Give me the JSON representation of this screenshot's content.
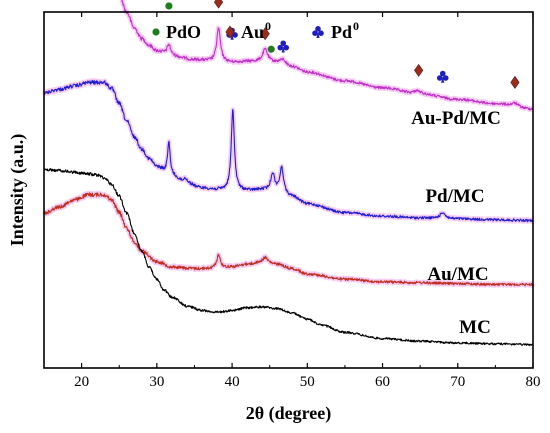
{
  "chart_data": {
    "type": "line",
    "xlabel": "2θ (degree)",
    "ylabel": "Intensity (a.u.)",
    "xlim": [
      15,
      80
    ],
    "xticks": [
      20,
      30,
      40,
      50,
      60,
      70,
      80
    ],
    "xtick_labels": [
      "20",
      "30",
      "40",
      "50",
      "60",
      "70",
      "80"
    ],
    "y_ticks_shown": false,
    "legend": {
      "placement": "top-center",
      "entries": [
        {
          "label": "PdO",
          "marker": "dot",
          "color": "#1e7d1e"
        },
        {
          "label": "Au",
          "superscript": "0",
          "marker": "diamond",
          "color": "#9b2c1c"
        },
        {
          "label": "Pd",
          "superscript": "0",
          "marker": "club",
          "color": "#1f1fc0"
        }
      ]
    },
    "series": [
      {
        "name": "Au-Pd/MC",
        "color": "#c030c8",
        "offset": 3,
        "points": [
          [
            15,
            1.95
          ],
          [
            17,
            1.97
          ],
          [
            19,
            1.99
          ],
          [
            21,
            2.0
          ],
          [
            23,
            1.99
          ],
          [
            24,
            1.93
          ],
          [
            25,
            1.8
          ],
          [
            26,
            1.6
          ],
          [
            27,
            1.42
          ],
          [
            28,
            1.3
          ],
          [
            29,
            1.22
          ],
          [
            30,
            1.16
          ],
          [
            32,
            1.1
          ],
          [
            35,
            1.06
          ],
          [
            38,
            1.04
          ],
          [
            40,
            1.03
          ],
          [
            42,
            1.04
          ],
          [
            44,
            1.04
          ],
          [
            46,
            1.03
          ],
          [
            48,
            0.98
          ],
          [
            50,
            0.92
          ],
          [
            55,
            0.82
          ],
          [
            60,
            0.74
          ],
          [
            65,
            0.67
          ],
          [
            70,
            0.61
          ],
          [
            75,
            0.56
          ],
          [
            80,
            0.5
          ]
        ],
        "peaks": [
          [
            31.6,
            0.13,
            0.3
          ],
          [
            38.2,
            0.38,
            0.3
          ],
          [
            44.4,
            0.14,
            0.4
          ],
          [
            46.8,
            0.05,
            0.4
          ],
          [
            64.6,
            0.04,
            0.5
          ],
          [
            77.6,
            0.04,
            0.5
          ]
        ]
      },
      {
        "name": "Pd/MC",
        "color": "#1f1fd0",
        "offset": 2,
        "points": [
          [
            15,
            1.5
          ],
          [
            17,
            1.54
          ],
          [
            19,
            1.58
          ],
          [
            21,
            1.62
          ],
          [
            23,
            1.62
          ],
          [
            24,
            1.55
          ],
          [
            25,
            1.38
          ],
          [
            26,
            1.18
          ],
          [
            27,
            1.0
          ],
          [
            28,
            0.86
          ],
          [
            29,
            0.75
          ],
          [
            30,
            0.66
          ],
          [
            32,
            0.55
          ],
          [
            34,
            0.47
          ],
          [
            36,
            0.42
          ],
          [
            38,
            0.4
          ],
          [
            40,
            0.39
          ],
          [
            42,
            0.39
          ],
          [
            44,
            0.4
          ],
          [
            46,
            0.38
          ],
          [
            48,
            0.32
          ],
          [
            50,
            0.24
          ],
          [
            55,
            0.14
          ],
          [
            60,
            0.1
          ],
          [
            65,
            0.08
          ],
          [
            70,
            0.07
          ],
          [
            75,
            0.06
          ],
          [
            80,
            0.05
          ]
        ],
        "peaks": [
          [
            31.6,
            0.38,
            0.22
          ],
          [
            33.8,
            0.06,
            0.3
          ],
          [
            40.1,
            0.92,
            0.25
          ],
          [
            45.4,
            0.2,
            0.3
          ],
          [
            46.6,
            0.28,
            0.3
          ],
          [
            68.0,
            0.07,
            0.4
          ]
        ]
      },
      {
        "name": "Au/MC",
        "color": "#c03020",
        "offset": 1,
        "points": [
          [
            15,
            0.85
          ],
          [
            17,
            0.92
          ],
          [
            19,
            1.0
          ],
          [
            21,
            1.06
          ],
          [
            23,
            1.06
          ],
          [
            24,
            1.0
          ],
          [
            25,
            0.86
          ],
          [
            26,
            0.68
          ],
          [
            27,
            0.52
          ],
          [
            28,
            0.42
          ],
          [
            30,
            0.3
          ],
          [
            32,
            0.24
          ],
          [
            35,
            0.22
          ],
          [
            38,
            0.22
          ],
          [
            40,
            0.24
          ],
          [
            42,
            0.27
          ],
          [
            44,
            0.29
          ],
          [
            46,
            0.27
          ],
          [
            48,
            0.22
          ],
          [
            50,
            0.16
          ],
          [
            55,
            0.1
          ],
          [
            60,
            0.07
          ],
          [
            65,
            0.06
          ],
          [
            70,
            0.05
          ],
          [
            75,
            0.04
          ],
          [
            80,
            0.04
          ]
        ],
        "peaks": [
          [
            38.2,
            0.16,
            0.3
          ],
          [
            44.4,
            0.06,
            0.4
          ]
        ]
      },
      {
        "name": "MC",
        "color": "#000000",
        "offset": 0,
        "points": [
          [
            15,
            2.05
          ],
          [
            17,
            2.04
          ],
          [
            19,
            2.02
          ],
          [
            21,
            2.0
          ],
          [
            22,
            1.99
          ],
          [
            23,
            1.96
          ],
          [
            24,
            1.88
          ],
          [
            25,
            1.75
          ],
          [
            26,
            1.55
          ],
          [
            27,
            1.33
          ],
          [
            28,
            1.12
          ],
          [
            29,
            0.94
          ],
          [
            30,
            0.8
          ],
          [
            31,
            0.68
          ],
          [
            32,
            0.6
          ],
          [
            34,
            0.5
          ],
          [
            36,
            0.45
          ],
          [
            38,
            0.43
          ],
          [
            40,
            0.45
          ],
          [
            42,
            0.48
          ],
          [
            44,
            0.49
          ],
          [
            46,
            0.47
          ],
          [
            48,
            0.42
          ],
          [
            50,
            0.35
          ],
          [
            52,
            0.28
          ],
          [
            55,
            0.2
          ],
          [
            60,
            0.13
          ],
          [
            65,
            0.1
          ],
          [
            70,
            0.08
          ],
          [
            75,
            0.07
          ],
          [
            80,
            0.06
          ]
        ],
        "peaks": []
      }
    ],
    "phase_markers": [
      {
        "phase": "PdO",
        "marker": "dot",
        "x": 31.6,
        "near": "Au-Pd/MC",
        "lift": 0.32
      },
      {
        "phase": "Au",
        "marker": "diamond",
        "x": 38.2,
        "near": "Au-Pd/MC",
        "lift": 0.18
      },
      {
        "phase": "Pd",
        "marker": "club",
        "x": 40.0,
        "near": "Au-Pd/MC",
        "lift": 0.2
      },
      {
        "phase": "Au",
        "marker": "diamond",
        "x": 44.4,
        "near": "Au-Pd/MC",
        "lift": 0.06
      },
      {
        "phase": "PdO",
        "marker": "dot",
        "x": 45.2,
        "near": "Au-Pd/MC",
        "lift": 0.0
      },
      {
        "phase": "Pd",
        "marker": "club",
        "x": 46.8,
        "near": "Au-Pd/MC",
        "lift": 0.03
      },
      {
        "phase": "Au",
        "marker": "diamond",
        "x": 64.8,
        "near": "Au-Pd/MC",
        "lift": 0.12
      },
      {
        "phase": "Pd",
        "marker": "club",
        "x": 68.0,
        "near": "Au-Pd/MC",
        "lift": 0.12
      },
      {
        "phase": "Au",
        "marker": "diamond",
        "x": 77.6,
        "near": "Au-Pd/MC",
        "lift": 0.12
      }
    ],
    "series_labels": [
      {
        "text": "Au-Pd/MC"
      },
      {
        "text": "Pd/MC"
      },
      {
        "text": "Au/MC"
      },
      {
        "text": "MC"
      }
    ]
  }
}
